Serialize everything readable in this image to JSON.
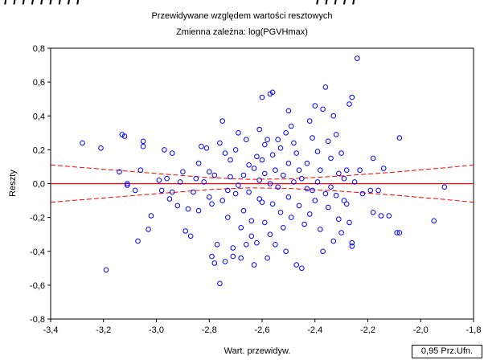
{
  "chart_data": {
    "type": "scatter",
    "title": "Przewidywane względem wartości resztowych",
    "subtitle": "Zmienna zależna: log(PGVHmax)",
    "xlabel": "Wart. przewidyw.",
    "ylabel": "Reszty",
    "xlim": [
      -3.4,
      -1.8
    ],
    "ylim": [
      -0.8,
      0.8
    ],
    "xticks": [
      "-3,4",
      "-3,2",
      "-3,0",
      "-2,8",
      "-2,6",
      "-2,4",
      "-2,2",
      "-2,0",
      "-1,8"
    ],
    "yticks": [
      "0,8",
      "0,6",
      "0,4",
      "0,2",
      "0,0",
      "-0,2",
      "-0,4",
      "-0,6",
      "-0,8"
    ],
    "grid": false,
    "legend": {
      "label": "0,95 Prz.Ufn.",
      "position": "bottom-right"
    },
    "colors": {
      "points": "#0000ff",
      "fit_line": "#ff0000",
      "conf_band": "#ff0000"
    },
    "fit_line": {
      "x": [
        -3.4,
        -1.8
      ],
      "y": [
        0.0,
        0.0
      ]
    },
    "conf_band": {
      "x": [
        -3.4,
        -3.2,
        -3.0,
        -2.8,
        -2.65,
        -2.5,
        -2.3,
        -2.1,
        -1.9,
        -1.8
      ],
      "upper": [
        0.11,
        0.085,
        0.06,
        0.035,
        0.025,
        0.028,
        0.045,
        0.068,
        0.095,
        0.11
      ],
      "lower": [
        -0.11,
        -0.085,
        -0.06,
        -0.035,
        -0.025,
        -0.028,
        -0.045,
        -0.068,
        -0.095,
        -0.11
      ]
    },
    "points": [
      [
        -3.28,
        0.24
      ],
      [
        -3.21,
        0.21
      ],
      [
        -3.19,
        -0.51
      ],
      [
        -3.14,
        0.07
      ],
      [
        -3.13,
        0.29
      ],
      [
        -3.12,
        0.28
      ],
      [
        -3.11,
        0.0
      ],
      [
        -3.11,
        -0.01
      ],
      [
        -3.08,
        -0.04
      ],
      [
        -3.07,
        -0.34
      ],
      [
        -3.06,
        0.08
      ],
      [
        -3.05,
        0.22
      ],
      [
        -3.05,
        0.25
      ],
      [
        -3.03,
        -0.27
      ],
      [
        -3.02,
        -0.19
      ],
      [
        -2.99,
        0.02
      ],
      [
        -2.98,
        -0.04
      ],
      [
        -2.97,
        0.2
      ],
      [
        -2.96,
        0.03
      ],
      [
        -2.95,
        -0.09
      ],
      [
        -2.94,
        0.18
      ],
      [
        -2.94,
        -0.05
      ],
      [
        -2.92,
        -0.13
      ],
      [
        -2.91,
        0.01
      ],
      [
        -2.9,
        0.07
      ],
      [
        -2.89,
        -0.28
      ],
      [
        -2.88,
        -0.15
      ],
      [
        -2.87,
        -0.31
      ],
      [
        -2.86,
        -0.05
      ],
      [
        -2.85,
        0.03
      ],
      [
        -2.84,
        -0.16
      ],
      [
        -2.84,
        0.12
      ],
      [
        -2.83,
        0.22
      ],
      [
        -2.82,
        0.01
      ],
      [
        -2.81,
        0.21
      ],
      [
        -2.8,
        -0.08
      ],
      [
        -2.8,
        0.07
      ],
      [
        -2.79,
        -0.12
      ],
      [
        -2.79,
        -0.43
      ],
      [
        -2.78,
        -0.47
      ],
      [
        -2.78,
        0.05
      ],
      [
        -2.77,
        -0.36
      ],
      [
        -2.76,
        -0.59
      ],
      [
        -2.76,
        0.24
      ],
      [
        -2.75,
        0.37
      ],
      [
        -2.75,
        -0.1
      ],
      [
        -2.74,
        -0.46
      ],
      [
        -2.74,
        0.18
      ],
      [
        -2.73,
        -0.2
      ],
      [
        -2.73,
        -0.04
      ],
      [
        -2.72,
        0.14
      ],
      [
        -2.72,
        0.04
      ],
      [
        -2.71,
        -0.38
      ],
      [
        -2.71,
        -0.43
      ],
      [
        -2.7,
        -0.06
      ],
      [
        -2.7,
        0.2
      ],
      [
        -2.69,
        -0.01
      ],
      [
        -2.69,
        0.3
      ],
      [
        -2.68,
        -0.26
      ],
      [
        -2.68,
        -0.44
      ],
      [
        -2.67,
        0.05
      ],
      [
        -2.67,
        -0.16
      ],
      [
        -2.66,
        0.26
      ],
      [
        -2.66,
        -0.36
      ],
      [
        -2.65,
        0.11
      ],
      [
        -2.65,
        -0.05
      ],
      [
        -2.64,
        -0.22
      ],
      [
        -2.64,
        -0.31
      ],
      [
        -2.63,
        0.09
      ],
      [
        -2.63,
        -0.48
      ],
      [
        -2.62,
        0.16
      ],
      [
        -2.62,
        -0.35
      ],
      [
        -2.61,
        0.02
      ],
      [
        -2.61,
        0.32
      ],
      [
        -2.61,
        -0.09
      ],
      [
        -2.6,
        0.51
      ],
      [
        -2.6,
        0.14
      ],
      [
        -2.6,
        -0.11
      ],
      [
        -2.59,
        -0.23
      ],
      [
        -2.59,
        0.06
      ],
      [
        -2.59,
        0.23
      ],
      [
        -2.58,
        -0.44
      ],
      [
        -2.58,
        0.26
      ],
      [
        -2.57,
        0.53
      ],
      [
        -2.57,
        -0.3
      ],
      [
        -2.57,
        0.0
      ],
      [
        -2.56,
        0.54
      ],
      [
        -2.56,
        0.17
      ],
      [
        -2.56,
        -0.12
      ],
      [
        -2.55,
        0.08
      ],
      [
        -2.55,
        -0.36
      ],
      [
        -2.54,
        0.26
      ],
      [
        -2.54,
        -0.02
      ],
      [
        -2.53,
        -0.17
      ],
      [
        -2.53,
        0.21
      ],
      [
        -2.52,
        0.05
      ],
      [
        -2.52,
        -0.26
      ],
      [
        -2.51,
        0.3
      ],
      [
        -2.51,
        -0.4
      ],
      [
        -2.5,
        0.43
      ],
      [
        -2.5,
        0.12
      ],
      [
        -2.5,
        -0.08
      ],
      [
        -2.49,
        0.34
      ],
      [
        -2.49,
        -0.2
      ],
      [
        -2.48,
        0.24
      ],
      [
        -2.48,
        0.01
      ],
      [
        -2.47,
        -0.48
      ],
      [
        -2.47,
        0.18
      ],
      [
        -2.46,
        -0.13
      ],
      [
        -2.46,
        0.08
      ],
      [
        -2.45,
        -0.5
      ],
      [
        -2.45,
        0.03
      ],
      [
        -2.44,
        -0.24
      ],
      [
        -2.43,
        0.12
      ],
      [
        -2.43,
        -0.03
      ],
      [
        -2.42,
        0.37
      ],
      [
        -2.42,
        -0.18
      ],
      [
        -2.41,
        -0.04
      ],
      [
        -2.41,
        0.27
      ],
      [
        -2.4,
        0.46
      ],
      [
        -2.4,
        -0.1
      ],
      [
        -2.39,
        0.01
      ],
      [
        -2.39,
        0.19
      ],
      [
        -2.38,
        -0.27
      ],
      [
        -2.38,
        0.08
      ],
      [
        -2.37,
        -0.4
      ],
      [
        -2.37,
        0.44
      ],
      [
        -2.36,
        -0.06
      ],
      [
        -2.36,
        0.57
      ],
      [
        -2.35,
        -0.14
      ],
      [
        -2.35,
        0.25
      ],
      [
        -2.34,
        -0.02
      ],
      [
        -2.34,
        0.15
      ],
      [
        -2.33,
        -0.34
      ],
      [
        -2.33,
        0.4
      ],
      [
        -2.32,
        -0.07
      ],
      [
        -2.32,
        0.29
      ],
      [
        -2.31,
        0.06
      ],
      [
        -2.31,
        -0.21
      ],
      [
        -2.3,
        -0.29
      ],
      [
        -2.3,
        0.18
      ],
      [
        -2.29,
        0.03
      ],
      [
        -2.29,
        -0.1
      ],
      [
        -2.28,
        0.08
      ],
      [
        -2.28,
        -0.12
      ],
      [
        -2.27,
        0.47
      ],
      [
        -2.27,
        -0.23
      ],
      [
        -2.26,
        0.51
      ],
      [
        -2.26,
        -0.35
      ],
      [
        -2.26,
        -0.37
      ],
      [
        -2.25,
        0.01
      ],
      [
        -2.24,
        0.74
      ],
      [
        -2.23,
        0.08
      ],
      [
        -2.22,
        -0.06
      ],
      [
        -2.19,
        -0.04
      ],
      [
        -2.18,
        0.15
      ],
      [
        -2.18,
        -0.17
      ],
      [
        -2.16,
        -0.04
      ],
      [
        -2.15,
        -0.19
      ],
      [
        -2.14,
        0.09
      ],
      [
        -2.12,
        -0.19
      ],
      [
        -2.09,
        -0.29
      ],
      [
        -2.08,
        0.27
      ],
      [
        -2.08,
        -0.29
      ],
      [
        -1.95,
        -0.22
      ],
      [
        -1.91,
        -0.02
      ]
    ]
  }
}
